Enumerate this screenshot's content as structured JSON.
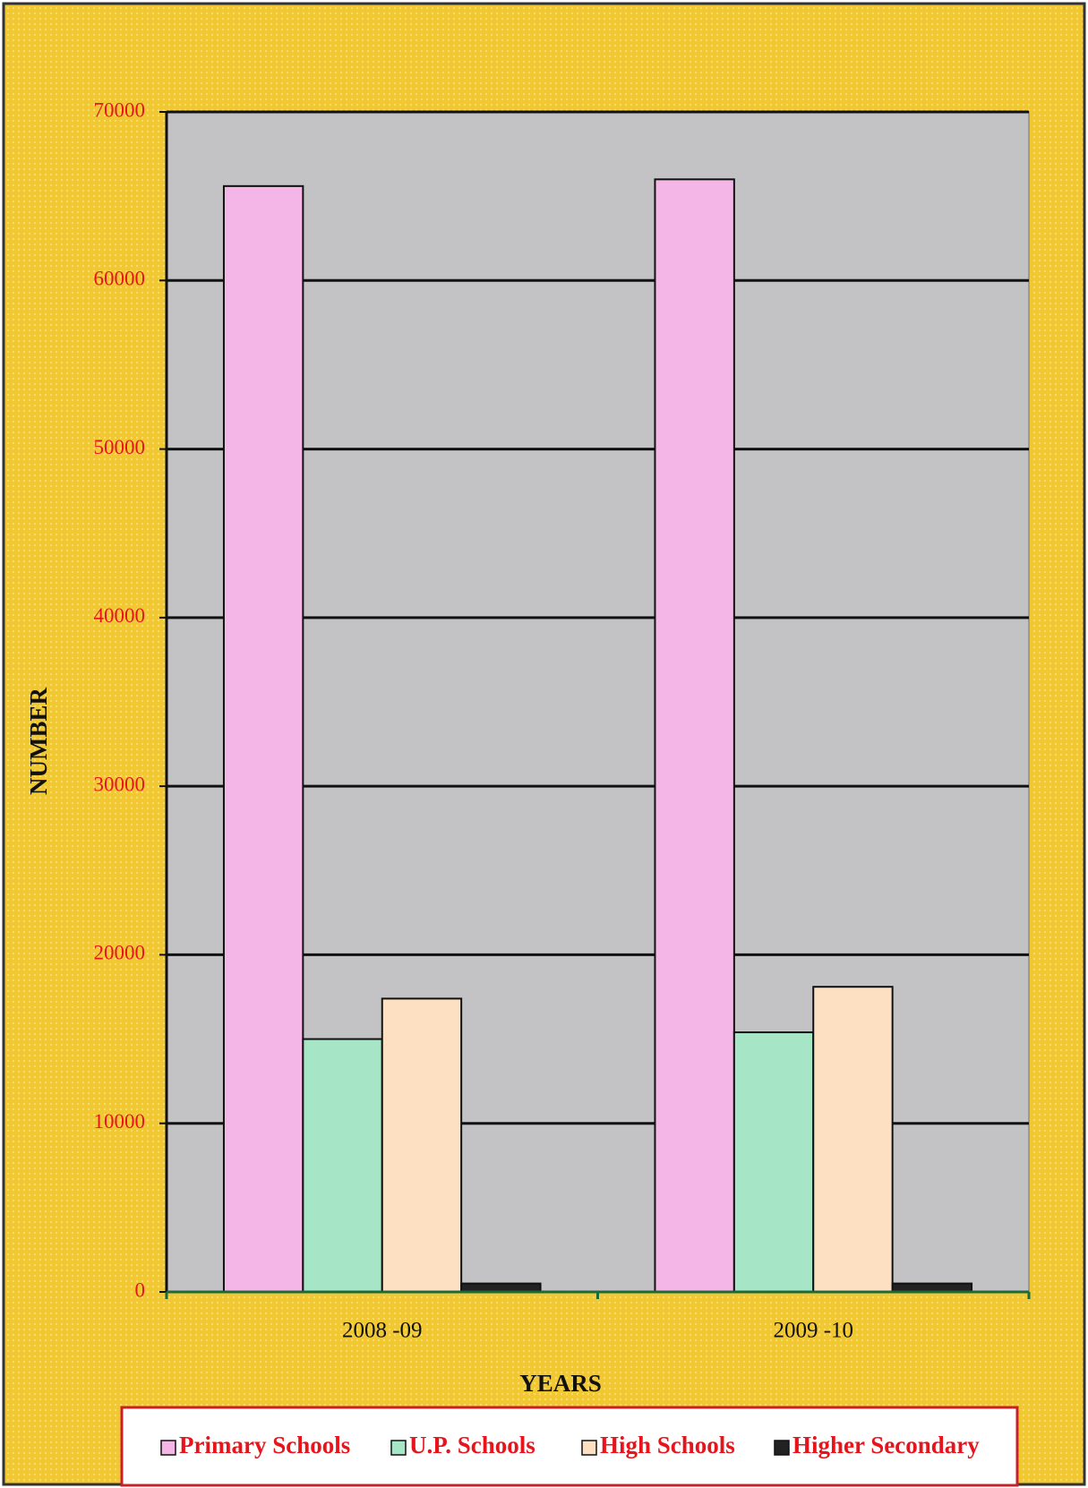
{
  "chart_data": {
    "type": "bar",
    "y_label": "NUMBER",
    "x_label": "YEARS",
    "categories": [
      "2008 -09",
      "2009 -10"
    ],
    "series": [
      {
        "name": "Primary Schools",
        "color": "#f4b6e6",
        "values": [
          65600,
          66000
        ]
      },
      {
        "name": "U.P. Schools",
        "color": "#a6e6c6",
        "values": [
          15000,
          15400
        ]
      },
      {
        "name": "High Schools",
        "color": "#fde0c2",
        "values": [
          17400,
          18100
        ]
      },
      {
        "name": "Higher Secondary",
        "color": "#222222",
        "values": [
          500,
          500
        ]
      }
    ],
    "ylim": [
      0,
      70000
    ],
    "yticks": [
      0,
      10000,
      20000,
      30000,
      40000,
      50000,
      60000,
      70000
    ],
    "grid": true,
    "legend": "bottom"
  }
}
